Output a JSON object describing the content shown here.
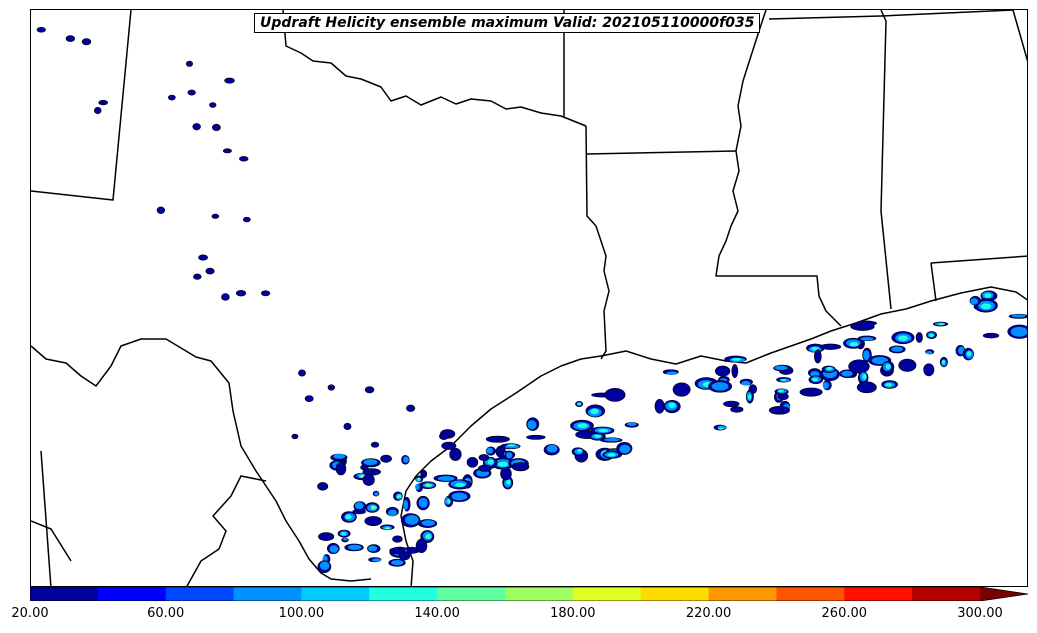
{
  "title": "Updraft Helicity ensemble maximum Valid: 202105110000f035",
  "colorbar": {
    "ticks": [
      "20.00",
      "60.00",
      "100.00",
      "140.00",
      "180.00",
      "220.00",
      "260.00",
      "300.00"
    ],
    "levels": [
      20,
      40,
      60,
      80,
      100,
      120,
      140,
      160,
      180,
      200,
      220,
      240,
      260,
      280,
      300
    ],
    "extend": "max",
    "colors": [
      "#00009c",
      "#0000ff",
      "#0048ff",
      "#0090ff",
      "#00ccff",
      "#20ffe0",
      "#60ffa0",
      "#a0ff60",
      "#e0ff20",
      "#ffdc00",
      "#ff9800",
      "#ff5400",
      "#ff1000",
      "#b40000",
      "#7a0000"
    ]
  },
  "map": {
    "region": "Texas and the northwestern Gulf of Mexico coast",
    "boundary_color": "#000000",
    "background": "#ffffff"
  }
}
